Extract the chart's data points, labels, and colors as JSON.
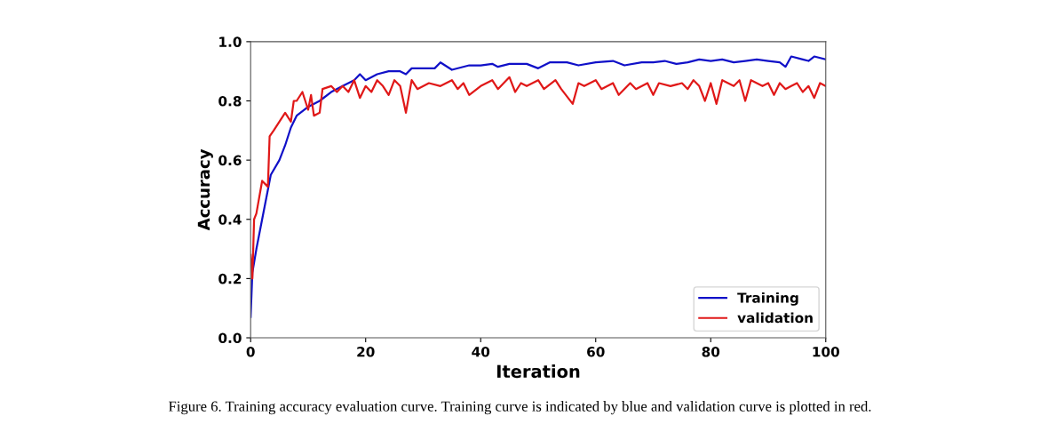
{
  "chart_data": {
    "type": "line",
    "xlabel": "Iteration",
    "ylabel": "Accuracy",
    "xlim": [
      0,
      100
    ],
    "ylim": [
      0,
      1.0
    ],
    "xticks": [
      0,
      20,
      40,
      60,
      80,
      100
    ],
    "yticks": [
      {
        "value": 0,
        "label": "0.0"
      },
      0.2,
      0.4,
      0.6,
      0.8,
      {
        "value": 1.0,
        "label": "1.0"
      }
    ],
    "grid": false,
    "legend": "bottom right",
    "line_style": "solid",
    "marker": "none",
    "series": [
      {
        "name": "Training",
        "color": "#1010c8",
        "x": [
          0,
          0.3,
          1,
          2,
          3,
          3.5,
          5,
          6,
          7,
          8,
          10,
          12,
          14,
          16,
          18,
          19,
          20,
          22,
          24,
          26,
          27,
          28,
          30,
          32,
          33,
          35,
          38,
          40,
          42,
          43,
          45,
          48,
          50,
          52,
          55,
          57,
          60,
          63,
          65,
          68,
          70,
          72,
          74,
          76,
          78,
          80,
          82,
          84,
          86,
          88,
          90,
          92,
          93,
          94,
          96,
          97,
          98,
          100
        ],
        "values": [
          0.07,
          0.22,
          0.3,
          0.4,
          0.5,
          0.55,
          0.6,
          0.65,
          0.71,
          0.75,
          0.78,
          0.8,
          0.83,
          0.85,
          0.87,
          0.89,
          0.87,
          0.89,
          0.9,
          0.9,
          0.89,
          0.91,
          0.91,
          0.91,
          0.93,
          0.905,
          0.92,
          0.92,
          0.925,
          0.915,
          0.925,
          0.925,
          0.91,
          0.93,
          0.93,
          0.92,
          0.93,
          0.935,
          0.92,
          0.93,
          0.93,
          0.935,
          0.925,
          0.93,
          0.94,
          0.935,
          0.94,
          0.93,
          0.935,
          0.94,
          0.935,
          0.93,
          0.915,
          0.95,
          0.94,
          0.935,
          0.95,
          0.94
        ]
      },
      {
        "name": "validation",
        "color": "#e01818",
        "x": [
          0,
          0.3,
          0.6,
          1,
          2,
          3,
          3.3,
          4,
          5,
          6,
          7,
          7.5,
          8,
          9,
          10,
          10.5,
          11,
          12,
          12.5,
          14,
          15,
          16,
          17,
          18,
          19,
          20,
          21,
          22,
          23,
          24,
          25,
          26,
          27,
          28,
          29,
          31,
          33,
          35,
          36,
          37,
          38,
          40,
          42,
          43,
          45,
          46,
          47,
          48,
          50,
          51,
          53,
          54,
          56,
          57,
          58,
          60,
          61,
          63,
          64,
          66,
          67,
          69,
          70,
          71,
          73,
          75,
          76,
          77,
          78,
          79,
          80,
          81,
          82,
          84,
          85,
          86,
          87,
          89,
          90,
          91,
          92,
          93,
          94,
          95,
          96,
          97,
          98,
          99,
          100
        ],
        "values": [
          0.28,
          0.2,
          0.4,
          0.42,
          0.53,
          0.51,
          0.68,
          0.7,
          0.73,
          0.76,
          0.73,
          0.8,
          0.8,
          0.83,
          0.77,
          0.82,
          0.75,
          0.76,
          0.84,
          0.85,
          0.83,
          0.85,
          0.83,
          0.87,
          0.81,
          0.85,
          0.83,
          0.87,
          0.85,
          0.82,
          0.87,
          0.85,
          0.76,
          0.87,
          0.84,
          0.86,
          0.85,
          0.87,
          0.84,
          0.86,
          0.82,
          0.85,
          0.87,
          0.84,
          0.88,
          0.83,
          0.86,
          0.85,
          0.87,
          0.84,
          0.87,
          0.84,
          0.79,
          0.86,
          0.85,
          0.87,
          0.84,
          0.86,
          0.82,
          0.86,
          0.84,
          0.86,
          0.82,
          0.86,
          0.85,
          0.86,
          0.84,
          0.87,
          0.85,
          0.8,
          0.86,
          0.79,
          0.87,
          0.85,
          0.87,
          0.8,
          0.87,
          0.85,
          0.86,
          0.82,
          0.86,
          0.84,
          0.85,
          0.86,
          0.83,
          0.85,
          0.81,
          0.86,
          0.85
        ]
      }
    ],
    "annotations": [
      "Figure 6. Training accuracy evaluation curve. Training curve is indicated by blue and validation curve is plotted in red."
    ]
  }
}
